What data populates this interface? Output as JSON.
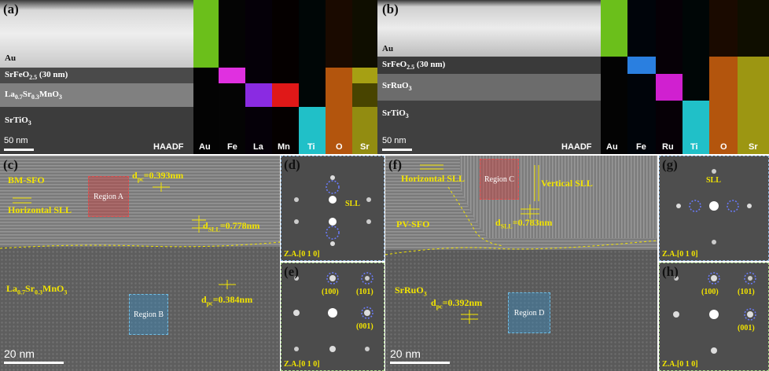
{
  "panels": {
    "a": {
      "label": "(a)",
      "layers": [
        "Au",
        "SrFeO",
        "2.5",
        " (30 nm)",
        "La",
        "0.7",
        "Sr",
        "0.3",
        "MnO",
        "3",
        "SrTiO",
        "3"
      ],
      "scale": "50 nm",
      "maps": [
        "HAADF",
        "Au",
        "Fe",
        "La",
        "Mn",
        "Ti",
        "O",
        "Sr"
      ]
    },
    "b": {
      "label": "(b)",
      "scale": "50 nm",
      "maps": [
        "HAADF",
        "Au",
        "Fe",
        "Ru",
        "Ti",
        "O",
        "Sr"
      ],
      "layers": [
        "Au",
        "SrFeO",
        "2.5",
        " (30 nm)",
        "SrRuO",
        "3",
        "SrTiO",
        "3"
      ]
    },
    "c": {
      "label": "(c)",
      "texts": {
        "bm_sfo": "BM-SFO",
        "horizontal_sll": "Horizontal SLL",
        "d_pc_top_pre": "d",
        "d_pc_top_sub": "pc",
        "d_pc_top_val": "=0.393nm",
        "d_sll_pre": "d",
        "d_sll_sub": "SLL",
        "d_sll_val": "=0.778nm",
        "lsmo_1": "La",
        "lsmo_2": "0.7",
        "lsmo_3": "Sr",
        "lsmo_4": "0.3",
        "lsmo_5": "MnO",
        "lsmo_6": "3",
        "d_pc_bot_pre": "d",
        "d_pc_bot_sub": "pc",
        "d_pc_bot_val": "=0.384nm",
        "region_a": "Region A",
        "region_b": "Region B"
      },
      "scale": "20 nm"
    },
    "d": {
      "label": "(d)",
      "sll": "SLL",
      "za": "Z.A.[0 1 0]"
    },
    "e": {
      "label": "(e)",
      "idx1": "(100)",
      "idx2": "(101)",
      "idx3": "(001)",
      "za": "Z.A.[0 1 0]"
    },
    "f": {
      "label": "(f)",
      "texts": {
        "horizontal_sll": "Horizontal SLL",
        "vertical_sll": "Vertical SLL",
        "pv_sfo": "PV-SFO",
        "d_sll_pre": "d",
        "d_sll_sub": "SLL",
        "d_sll_val": "=0.783nm",
        "sro_1": "SrRuO",
        "sro_2": "3",
        "d_pc_pre": "d",
        "d_pc_sub": "pc",
        "d_pc_val": "=0.392nm",
        "region_c": "Region C",
        "region_d": "Region D"
      },
      "scale": "20 nm"
    },
    "g": {
      "label": "(g)",
      "sll": "SLL",
      "za": "Z.A.[0 1 0]"
    },
    "h": {
      "label": "(h)",
      "idx1": "(100)",
      "idx2": "(101)",
      "idx3": "(001)",
      "za": "Z.A.[0 1 0]"
    }
  },
  "colors": {
    "annotation_yellow": "#f2e400",
    "au_map": "#7ee020",
    "fe_map": "#e030e0",
    "la_map": "#8a2be2",
    "mn_map": "#e01818",
    "ti_map": "#20c0c8",
    "o_map": "#e06a10",
    "sr_map": "#d0c818",
    "fe_map_b": "#2a7fe0",
    "ru_map": "#d020d0"
  }
}
